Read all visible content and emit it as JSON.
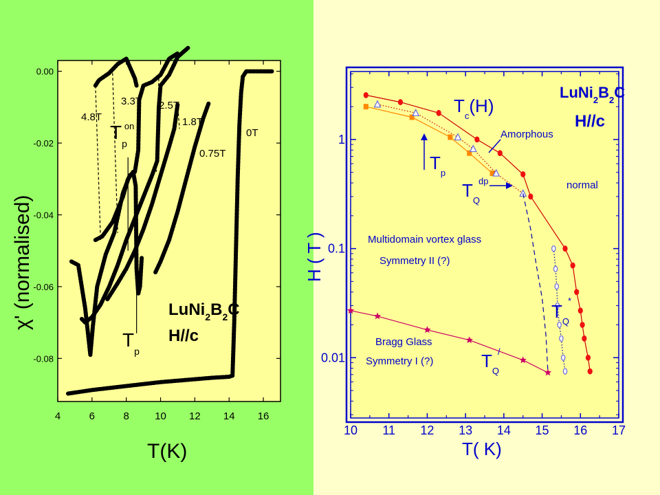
{
  "colors": {
    "left_background": "#99FF66",
    "right_background": "#FFFFCC",
    "plot_background": "#FFFF99",
    "left_ink": "#000000",
    "right_frame": "#0000CC",
    "hc2_series": "#CC0000",
    "marker_red": "#EE1111",
    "marker_orange": "#FF8800",
    "marker_open": "#6666DD",
    "bragg_series": "#CC0066"
  },
  "chart_data": [
    {
      "id": "left-chi",
      "type": "line",
      "xlabel": "T(K)",
      "ylabel": "χ' (normalised)",
      "xlim": [
        4,
        17
      ],
      "ylim": [
        -0.092,
        0.003
      ],
      "x_ticks": [
        4,
        6,
        8,
        10,
        12,
        14,
        16
      ],
      "x_tick_labels": [
        "4",
        "6",
        "8",
        "10",
        "12",
        "14",
        "16"
      ],
      "y_ticks": [
        0,
        -0.02,
        -0.04,
        -0.06,
        -0.08
      ],
      "y_tick_labels": [
        "0.00",
        "-0.02",
        "-0.04",
        "-0.06",
        "-0.08"
      ],
      "annotations": {
        "sample_name": "LuNi2B2C",
        "sample_parts": [
          "LuNi",
          "2",
          "B",
          "2",
          "C"
        ],
        "field_direction": "H//c",
        "tp_on_label": "T",
        "tp_on_sub": "p",
        "tp_on_sup": "on",
        "tp_label": "T",
        "tp_sub": "p"
      },
      "series": [
        {
          "name": "0T",
          "points": [
            [
              4.6,
              -0.0898
            ],
            [
              6,
              -0.0888
            ],
            [
              8,
              -0.0877
            ],
            [
              10,
              -0.0866
            ],
            [
              11,
              -0.0862
            ],
            [
              12,
              -0.0858
            ],
            [
              13,
              -0.0854
            ],
            [
              14,
              -0.0851
            ],
            [
              14.2,
              -0.0848
            ],
            [
              14.3,
              -0.07
            ],
            [
              14.4,
              -0.05
            ],
            [
              14.5,
              -0.03
            ],
            [
              14.6,
              -0.015
            ],
            [
              14.7,
              -0.006
            ],
            [
              14.8,
              -0.0015
            ],
            [
              15,
              0
            ],
            [
              16.5,
              0
            ]
          ]
        },
        {
          "name": "0.75T",
          "points": [
            [
              9.7,
              -0.056
            ],
            [
              10,
              -0.053
            ],
            [
              10.5,
              -0.047
            ],
            [
              11,
              -0.039
            ],
            [
              11.5,
              -0.03
            ],
            [
              12,
              -0.021
            ],
            [
              12.5,
              -0.013
            ],
            [
              12.8,
              -0.009
            ]
          ]
        },
        {
          "name": "1.8T",
          "points": [
            [
              6.9,
              -0.0635
            ],
            [
              7.5,
              -0.059
            ],
            [
              8,
              -0.055
            ],
            [
              8.5,
              -0.05
            ],
            [
              9,
              -0.044
            ],
            [
              9.5,
              -0.037
            ],
            [
              10,
              -0.029
            ],
            [
              10.5,
              -0.021
            ],
            [
              10.8,
              -0.016
            ],
            [
              11,
              -0.009
            ]
          ]
        },
        {
          "name": "2.5T",
          "points": [
            [
              5.4,
              -0.069
            ],
            [
              5.6,
              -0.07
            ],
            [
              6,
              -0.0685
            ],
            [
              6.5,
              -0.065
            ],
            [
              7,
              -0.06
            ],
            [
              7.5,
              -0.054
            ],
            [
              8,
              -0.047
            ],
            [
              8.5,
              -0.041
            ],
            [
              9,
              -0.035
            ],
            [
              9.5,
              -0.029
            ],
            [
              9.8,
              -0.025
            ],
            [
              9.9,
              -0.01
            ],
            [
              10,
              -0.004
            ],
            [
              10.5,
              -0.001
            ],
            [
              11,
              0.004
            ],
            [
              11.6,
              0.0065
            ]
          ]
        },
        {
          "name": "3.3T",
          "points": [
            [
              4.8,
              -0.053
            ],
            [
              5.2,
              -0.054
            ],
            [
              5.6,
              -0.066
            ],
            [
              5.9,
              -0.079
            ],
            [
              6.05,
              -0.071
            ],
            [
              6.3,
              -0.06
            ],
            [
              6.8,
              -0.051
            ],
            [
              7.3,
              -0.045
            ],
            [
              7.8,
              -0.034
            ],
            [
              8.2,
              -0.029
            ],
            [
              8.5,
              -0.028
            ],
            [
              8.7,
              -0.022
            ],
            [
              8.75,
              -0.008
            ],
            [
              9,
              -0.004
            ],
            [
              9.5,
              -0.003
            ],
            [
              10,
              -0.001
            ],
            [
              10.5,
              0.0035
            ],
            [
              11,
              0.005
            ]
          ]
        },
        {
          "name": "4.8T",
          "points": [
            [
              6.2,
              -0.047
            ],
            [
              6.6,
              -0.046
            ],
            [
              7.2,
              -0.042
            ],
            [
              7.8,
              -0.035
            ],
            [
              8.1,
              -0.03
            ],
            [
              8.4,
              -0.028
            ],
            [
              8.55,
              -0.032
            ],
            [
              8.6,
              -0.055
            ],
            [
              8.7,
              -0.062
            ],
            [
              8.8,
              -0.06
            ],
            [
              8.9,
              -0.052
            ]
          ]
        },
        {
          "name": "4.8T top",
          "points": [
            [
              6.2,
              -0.004
            ],
            [
              6.4,
              -0.0025
            ],
            [
              7,
              -0.0005
            ],
            [
              7.5,
              0.002
            ],
            [
              8,
              0.0035
            ],
            [
              8.5,
              -0.002
            ],
            [
              8.6,
              -0.004
            ]
          ]
        }
      ],
      "curve_labels": [
        "4.8T",
        "3.3T",
        "2.5T",
        "1.8T",
        "0.75T",
        "0T"
      ],
      "transition_lines": [
        {
          "series": "4.8T",
          "x": [
            6.2,
            6.5
          ],
          "y": [
            -0.004,
            -0.047
          ]
        },
        {
          "series": "3.3T",
          "x": [
            7.2,
            7.5
          ],
          "y": [
            -0.0005,
            -0.045
          ]
        },
        {
          "series": "2.5T",
          "x": [
            9.9,
            9.75
          ],
          "y": [
            -0.002,
            -0.028
          ]
        },
        {
          "series": "1.8T",
          "x": [
            11.0,
            11.1
          ],
          "y": [
            -0.009,
            -0.016
          ]
        }
      ],
      "marker_lines": [
        {
          "label": "Tp on",
          "x": 8.1,
          "y": [
            -0.024,
            -0.05
          ]
        },
        {
          "label": "Tp",
          "x": 8.6,
          "y": [
            -0.055,
            -0.073
          ]
        }
      ]
    },
    {
      "id": "right-phase",
      "type": "line",
      "xlabel": "T( K)",
      "ylabel": "H ( T )",
      "xlim": [
        10,
        17
      ],
      "ylim": [
        0.0028,
        4.2
      ],
      "y_log": true,
      "x_ticks": [
        10,
        11,
        12,
        13,
        14,
        15,
        16,
        17
      ],
      "x_tick_labels": [
        "10",
        "11",
        "12",
        "13",
        "14",
        "15",
        "16",
        "17"
      ],
      "y_ticks": [
        0.01,
        0.1,
        1
      ],
      "y_tick_labels": [
        "0.01",
        "0.1",
        "1"
      ],
      "annotations": {
        "sample_name": "LuNi2B2C",
        "sample_parts": [
          "LuNi",
          "2",
          "B",
          "2",
          "C"
        ],
        "field_direction": "H//c",
        "tc_label": "T",
        "tc_sub": "c",
        "tc_paren": "(H)",
        "amorphous": "Amorphous",
        "tp_label": "T",
        "tp_sub": "p",
        "tq_dp_label": "T",
        "tq_dp_sub": "Q",
        "tq_dp_sup": "dp",
        "normal": "normal",
        "multidomain_1": "Multidomain vortex glass",
        "multidomain_2": "Symmetry II (?)",
        "bragg_1": "Bragg Glass",
        "bragg_2": "Symmetry I (?)",
        "tq_star_label": "T",
        "tq_star_sub": "Q",
        "tq_star_sup": "*",
        "tq_prime_label": "T",
        "tq_prime_sub": "Q",
        "tq_prime_sup": "/"
      },
      "series": [
        {
          "name": "Tc(H)",
          "marker": "filled-circle",
          "line": "solid",
          "color": "#CC0000",
          "points": [
            [
              10.4,
              2.55
            ],
            [
              11.3,
              2.2
            ],
            [
              12.3,
              1.75
            ],
            [
              13.3,
              1.0
            ],
            [
              13.9,
              0.75
            ],
            [
              14.5,
              0.48
            ],
            [
              14.7,
              0.3
            ],
            [
              15.6,
              0.1
            ],
            [
              15.8,
              0.07
            ],
            [
              15.9,
              0.04
            ],
            [
              16.0,
              0.027
            ],
            [
              16.05,
              0.02
            ],
            [
              16.1,
              0.015
            ],
            [
              16.2,
              0.01
            ],
            [
              16.25,
              0.0075
            ]
          ]
        },
        {
          "name": "Tp",
          "marker": "filled-square",
          "line": "solid",
          "color": "#FF8800",
          "points": [
            [
              10.4,
              2.0
            ],
            [
              11.6,
              1.6
            ],
            [
              12.6,
              1.05
            ],
            [
              13.1,
              0.75
            ],
            [
              13.7,
              0.49
            ]
          ]
        },
        {
          "name": "TQ dp",
          "marker": "open-triangle",
          "line": "dotted",
          "color": "#CC0000",
          "points": [
            [
              10.7,
              2.1
            ],
            [
              11.7,
              1.75
            ],
            [
              12.8,
              1.05
            ],
            [
              13.2,
              0.82
            ],
            [
              13.8,
              0.49
            ],
            [
              14.5,
              0.32
            ]
          ]
        },
        {
          "name": "TQ dp boundary",
          "marker": "none",
          "line": "dashed",
          "color": "#0000AA",
          "points": [
            [
              14.5,
              0.32
            ],
            [
              14.7,
              0.15
            ],
            [
              14.85,
              0.07
            ],
            [
              15.0,
              0.035
            ],
            [
              15.1,
              0.016
            ],
            [
              15.15,
              0.0075
            ]
          ]
        },
        {
          "name": "TQ*",
          "marker": "open-diamond",
          "line": "dotted",
          "color": "#0000AA",
          "points": [
            [
              15.3,
              0.1
            ],
            [
              15.35,
              0.065
            ],
            [
              15.38,
              0.045
            ],
            [
              15.4,
              0.03
            ],
            [
              15.45,
              0.02
            ],
            [
              15.5,
              0.015
            ],
            [
              15.55,
              0.01
            ],
            [
              15.6,
              0.0075
            ]
          ]
        },
        {
          "name": "TQ'",
          "marker": "star",
          "line": "solid",
          "color": "#CC0066",
          "points": [
            [
              10.0,
              0.027
            ],
            [
              10.7,
              0.024
            ],
            [
              12.0,
              0.018
            ],
            [
              13.1,
              0.0145
            ],
            [
              14.5,
              0.0095
            ],
            [
              15.15,
              0.0073
            ]
          ]
        }
      ]
    }
  ]
}
